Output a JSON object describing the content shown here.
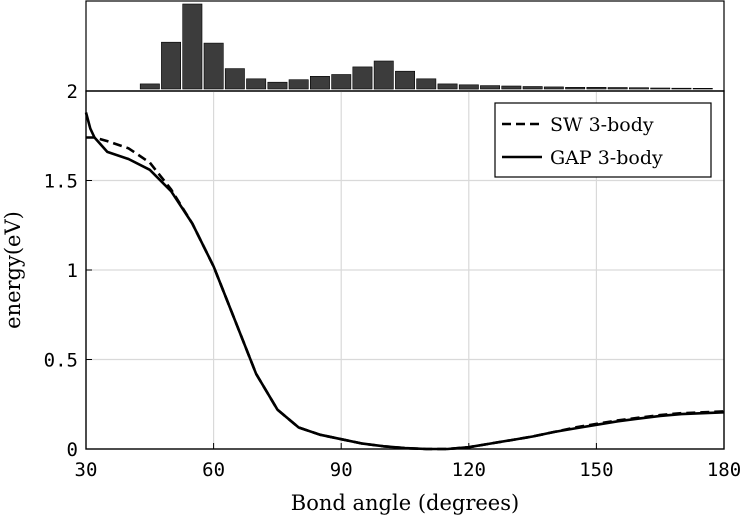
{
  "chart_data": {
    "type": "line",
    "x_axis": {
      "label": "Bond angle (degrees)",
      "range": [
        30,
        180
      ],
      "ticks": [
        30,
        60,
        90,
        120,
        150,
        180
      ],
      "tick_labels": [
        "30",
        "60",
        "90",
        "120",
        "150",
        "180"
      ]
    },
    "y_axis": {
      "label": "energy(eV)",
      "range": [
        0,
        2
      ],
      "ticks": [
        0,
        0.5,
        1,
        1.5,
        2
      ],
      "tick_labels": [
        "0",
        "0.5",
        "1",
        "1.5",
        "2"
      ]
    },
    "grid": true,
    "legend_position": "top-right",
    "series": [
      {
        "name": "SW 3-body",
        "style": "dashed",
        "color": "#000000",
        "x": [
          30,
          32,
          35,
          40,
          45,
          50,
          55,
          60,
          65,
          70,
          75,
          80,
          85,
          90,
          95,
          100,
          105,
          110,
          115,
          120,
          125,
          130,
          135,
          140,
          145,
          150,
          155,
          160,
          165,
          170,
          175,
          180
        ],
        "y": [
          1.74,
          1.74,
          1.72,
          1.68,
          1.6,
          1.45,
          1.26,
          1.02,
          0.72,
          0.42,
          0.22,
          0.12,
          0.08,
          0.055,
          0.03,
          0.015,
          0.005,
          0.0,
          0.0,
          0.01,
          0.03,
          0.05,
          0.07,
          0.095,
          0.12,
          0.14,
          0.16,
          0.175,
          0.19,
          0.2,
          0.205,
          0.21
        ]
      },
      {
        "name": "GAP 3-body",
        "style": "solid",
        "color": "#000000",
        "x": [
          30,
          31,
          32,
          35,
          40,
          45,
          50,
          55,
          60,
          65,
          70,
          75,
          80,
          85,
          90,
          95,
          100,
          105,
          110,
          115,
          120,
          125,
          130,
          135,
          140,
          145,
          150,
          155,
          160,
          165,
          170,
          175,
          180
        ],
        "y": [
          1.88,
          1.79,
          1.74,
          1.66,
          1.62,
          1.56,
          1.44,
          1.26,
          1.02,
          0.72,
          0.42,
          0.22,
          0.12,
          0.08,
          0.055,
          0.03,
          0.015,
          0.005,
          0.0,
          0.0,
          0.01,
          0.03,
          0.05,
          0.07,
          0.095,
          0.115,
          0.135,
          0.155,
          0.17,
          0.185,
          0.195,
          0.2,
          0.205
        ]
      }
    ],
    "histogram": {
      "description_scale": "relative frequency (arbitrary units, top panel has no axis labels)",
      "bin_centers": [
        45,
        50,
        55,
        60,
        65,
        70,
        75,
        80,
        85,
        90,
        95,
        100,
        105,
        110,
        115,
        120,
        125,
        130,
        135,
        140,
        145,
        150,
        155,
        160,
        165,
        170,
        175
      ],
      "values": [
        0.06,
        0.55,
        1.0,
        0.54,
        0.24,
        0.12,
        0.08,
        0.11,
        0.15,
        0.17,
        0.26,
        0.33,
        0.21,
        0.12,
        0.06,
        0.05,
        0.04,
        0.035,
        0.03,
        0.025,
        0.02,
        0.02,
        0.018,
        0.015,
        0.012,
        0.01,
        0.008
      ],
      "bar_color": "#3c3c3c"
    }
  }
}
